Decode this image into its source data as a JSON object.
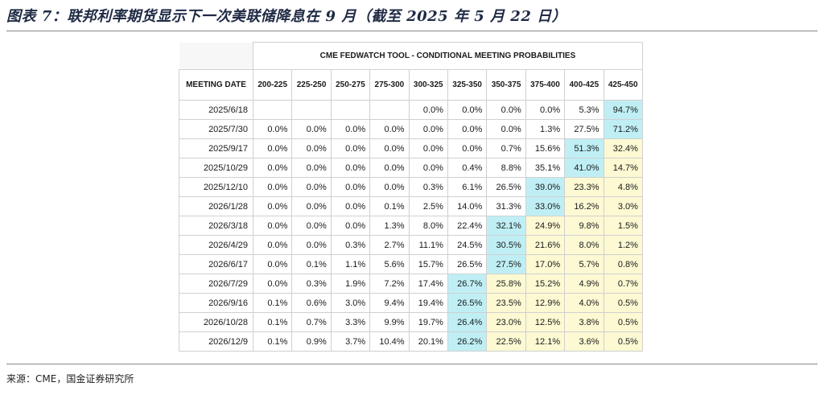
{
  "title": "图表 7：联邦利率期货显示下一次美联储降息在 9 月（截至 2025 年 5 月 22 日）",
  "source": "来源：CME，国金证券研究所",
  "colors": {
    "peak": "#bfeff5",
    "tail": "#fcf9d3",
    "title": "#1f2a44"
  },
  "chart_data": {
    "type": "table",
    "title": "CME FEDWATCH TOOL - CONDITIONAL MEETING PROBABILITIES",
    "row_header": "MEETING DATE",
    "columns": [
      "200-225",
      "225-250",
      "250-275",
      "275-300",
      "300-325",
      "325-350",
      "350-375",
      "375-400",
      "400-425",
      "425-450"
    ],
    "rows": [
      {
        "date": "2025/6/18",
        "values": [
          "",
          "",
          "",
          "",
          "0.0%",
          "0.0%",
          "0.0%",
          "0.0%",
          "5.3%",
          "94.7%"
        ],
        "shade": [
          "",
          "",
          "",
          "",
          "",
          "",
          "",
          "",
          "",
          "c"
        ]
      },
      {
        "date": "2025/7/30",
        "values": [
          "0.0%",
          "0.0%",
          "0.0%",
          "0.0%",
          "0.0%",
          "0.0%",
          "0.0%",
          "1.3%",
          "27.5%",
          "71.2%"
        ],
        "shade": [
          "",
          "",
          "",
          "",
          "",
          "",
          "",
          "",
          "",
          "c"
        ]
      },
      {
        "date": "2025/9/17",
        "values": [
          "0.0%",
          "0.0%",
          "0.0%",
          "0.0%",
          "0.0%",
          "0.0%",
          "0.7%",
          "15.6%",
          "51.3%",
          "32.4%"
        ],
        "shade": [
          "",
          "",
          "",
          "",
          "",
          "",
          "",
          "",
          "c",
          "y"
        ]
      },
      {
        "date": "2025/10/29",
        "values": [
          "0.0%",
          "0.0%",
          "0.0%",
          "0.0%",
          "0.0%",
          "0.4%",
          "8.8%",
          "35.1%",
          "41.0%",
          "14.7%"
        ],
        "shade": [
          "",
          "",
          "",
          "",
          "",
          "",
          "",
          "",
          "c",
          "y"
        ]
      },
      {
        "date": "2025/12/10",
        "values": [
          "0.0%",
          "0.0%",
          "0.0%",
          "0.0%",
          "0.3%",
          "6.1%",
          "26.5%",
          "39.0%",
          "23.3%",
          "4.8%"
        ],
        "shade": [
          "",
          "",
          "",
          "",
          "",
          "",
          "",
          "c",
          "y",
          "y"
        ]
      },
      {
        "date": "2026/1/28",
        "values": [
          "0.0%",
          "0.0%",
          "0.0%",
          "0.1%",
          "2.5%",
          "14.0%",
          "31.3%",
          "33.0%",
          "16.2%",
          "3.0%"
        ],
        "shade": [
          "",
          "",
          "",
          "",
          "",
          "",
          "",
          "c",
          "y",
          "y"
        ]
      },
      {
        "date": "2026/3/18",
        "values": [
          "0.0%",
          "0.0%",
          "0.0%",
          "1.3%",
          "8.0%",
          "22.4%",
          "32.1%",
          "24.9%",
          "9.8%",
          "1.5%"
        ],
        "shade": [
          "",
          "",
          "",
          "",
          "",
          "",
          "c",
          "y",
          "y",
          "y"
        ]
      },
      {
        "date": "2026/4/29",
        "values": [
          "0.0%",
          "0.0%",
          "0.3%",
          "2.7%",
          "11.1%",
          "24.5%",
          "30.5%",
          "21.6%",
          "8.0%",
          "1.2%"
        ],
        "shade": [
          "",
          "",
          "",
          "",
          "",
          "",
          "c",
          "y",
          "y",
          "y"
        ]
      },
      {
        "date": "2026/6/17",
        "values": [
          "0.0%",
          "0.1%",
          "1.1%",
          "5.6%",
          "15.7%",
          "26.5%",
          "27.5%",
          "17.0%",
          "5.7%",
          "0.8%"
        ],
        "shade": [
          "",
          "",
          "",
          "",
          "",
          "",
          "c",
          "y",
          "y",
          "y"
        ]
      },
      {
        "date": "2026/7/29",
        "values": [
          "0.0%",
          "0.3%",
          "1.9%",
          "7.2%",
          "17.4%",
          "26.7%",
          "25.8%",
          "15.2%",
          "4.9%",
          "0.7%"
        ],
        "shade": [
          "",
          "",
          "",
          "",
          "",
          "c",
          "y",
          "y",
          "y",
          "y"
        ]
      },
      {
        "date": "2026/9/16",
        "values": [
          "0.1%",
          "0.6%",
          "3.0%",
          "9.4%",
          "19.4%",
          "26.5%",
          "23.5%",
          "12.9%",
          "4.0%",
          "0.5%"
        ],
        "shade": [
          "",
          "",
          "",
          "",
          "",
          "c",
          "y",
          "y",
          "y",
          "y"
        ]
      },
      {
        "date": "2026/10/28",
        "values": [
          "0.1%",
          "0.7%",
          "3.3%",
          "9.9%",
          "19.7%",
          "26.4%",
          "23.0%",
          "12.5%",
          "3.8%",
          "0.5%"
        ],
        "shade": [
          "",
          "",
          "",
          "",
          "",
          "c",
          "y",
          "y",
          "y",
          "y"
        ]
      },
      {
        "date": "2026/12/9",
        "values": [
          "0.1%",
          "0.9%",
          "3.7%",
          "10.4%",
          "20.1%",
          "26.2%",
          "22.5%",
          "12.1%",
          "3.6%",
          "0.5%"
        ],
        "shade": [
          "",
          "",
          "",
          "",
          "",
          "c",
          "y",
          "y",
          "y",
          "y"
        ]
      }
    ]
  }
}
